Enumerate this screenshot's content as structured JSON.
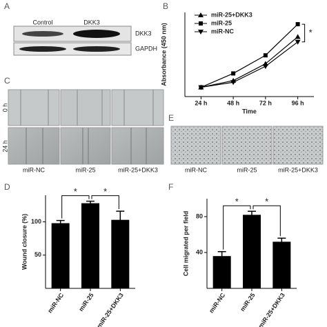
{
  "figure": {
    "panel_labels": [
      "A",
      "B",
      "C",
      "D",
      "E",
      "F"
    ],
    "blot": {
      "columns": [
        "Control",
        "DKK3"
      ],
      "rows": [
        "DKK3",
        "GAPDH"
      ]
    },
    "wound": {
      "times": [
        "0 h",
        "24 h"
      ],
      "groups": [
        "miR-NC",
        "miR-25",
        "miR-25+DKK3"
      ]
    },
    "transwell": {
      "groups": [
        "miR-NC",
        "miR-25",
        "miR-25+DKK3"
      ]
    }
  },
  "chart_data": [
    {
      "type": "line",
      "xlabel": "Time",
      "ylabel": "Absorbance (450 nm)",
      "categories": [
        "24 h",
        "48 h",
        "72 h",
        "96 h"
      ],
      "ylim": [
        0,
        2
      ],
      "yticks": [],
      "legend": "top-left",
      "annotations": [
        "*"
      ],
      "series": [
        {
          "name": "miR-25+DKK3",
          "color": "#000000",
          "marker": "triangle",
          "values": [
            0.22,
            0.38,
            0.78,
            1.42
          ]
        },
        {
          "name": "miR-25",
          "color": "#000000",
          "marker": "square",
          "values": [
            0.22,
            0.55,
            0.98,
            1.72
          ]
        },
        {
          "name": "miR-NC",
          "color": "#000000",
          "marker": "triangle-down",
          "values": [
            0.22,
            0.34,
            0.72,
            1.3
          ]
        }
      ]
    },
    {
      "type": "bar",
      "ylabel": "Wound closure (%)",
      "categories": [
        "miR-NC",
        "miR-25",
        "miR-25+DKK3"
      ],
      "values": [
        98,
        128,
        103
      ],
      "errors": [
        4,
        3,
        13
      ],
      "color": "#000000",
      "ylim": [
        0,
        140
      ],
      "yticks": [
        50,
        100
      ],
      "annotations": [
        "*",
        "*"
      ]
    },
    {
      "type": "bar",
      "ylabel": "Cell migrated per field",
      "categories": [
        "miR-NC",
        "miR-25",
        "miR-25+DKK3"
      ],
      "values": [
        36,
        82,
        52
      ],
      "errors": [
        5,
        4,
        4
      ],
      "color": "#000000",
      "ylim": [
        0,
        100
      ],
      "yticks": [
        40,
        80
      ],
      "annotations": [
        "*",
        "*"
      ]
    }
  ]
}
